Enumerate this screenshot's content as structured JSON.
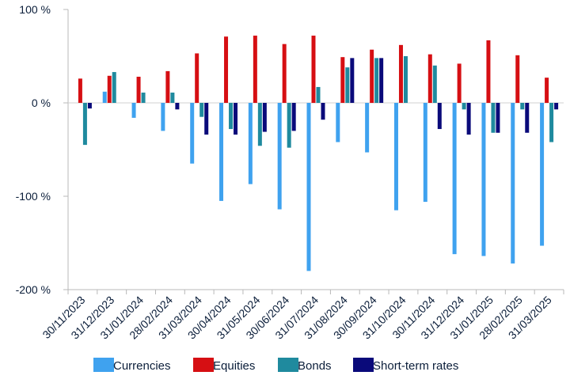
{
  "chart_data": {
    "type": "bar",
    "categories": [
      "30/11/2023",
      "31/12/2023",
      "31/01/2024",
      "28/02/2024",
      "31/03/2024",
      "30/04/2024",
      "31/05/2024",
      "30/06/2024",
      "31/07/2024",
      "31/08/2024",
      "30/09/2024",
      "31/10/2024",
      "30/11/2024",
      "31/12/2024",
      "31/01/2025",
      "28/02/2025",
      "31/03/2025"
    ],
    "series": [
      {
        "name": "Currencies",
        "color": "#3fa2ef",
        "values": [
          0,
          12,
          -16,
          -30,
          -65,
          -105,
          -87,
          -114,
          -180,
          -42,
          -53,
          -115,
          -106,
          -162,
          -164,
          -172,
          -153
        ]
      },
      {
        "name": "Equities",
        "color": "#d60f13",
        "values": [
          26,
          29,
          28,
          34,
          53,
          71,
          72,
          63,
          72,
          49,
          57,
          62,
          52,
          42,
          67,
          51,
          27
        ]
      },
      {
        "name": "Bonds",
        "color": "#1f8a9e",
        "values": [
          -45,
          33,
          11,
          11,
          -15,
          -28,
          -46,
          -48,
          17,
          38,
          48,
          50,
          40,
          -7,
          -32,
          -7,
          -42
        ]
      },
      {
        "name": "Short-term rates",
        "color": "#0a0a7a",
        "values": [
          -6,
          0,
          0,
          -7,
          -34,
          -34,
          -31,
          -30,
          -18,
          48,
          48,
          0,
          -28,
          -34,
          -32,
          -32,
          -7
        ]
      }
    ],
    "ylim": [
      -200,
      100
    ],
    "yticks": [
      100,
      0,
      -100,
      -200
    ],
    "ytick_labels": [
      "100 %",
      "0 %",
      "-100 %",
      "-200 %"
    ],
    "grid": false,
    "legend_position": "bottom",
    "title": "",
    "xlabel": "",
    "ylabel": ""
  }
}
